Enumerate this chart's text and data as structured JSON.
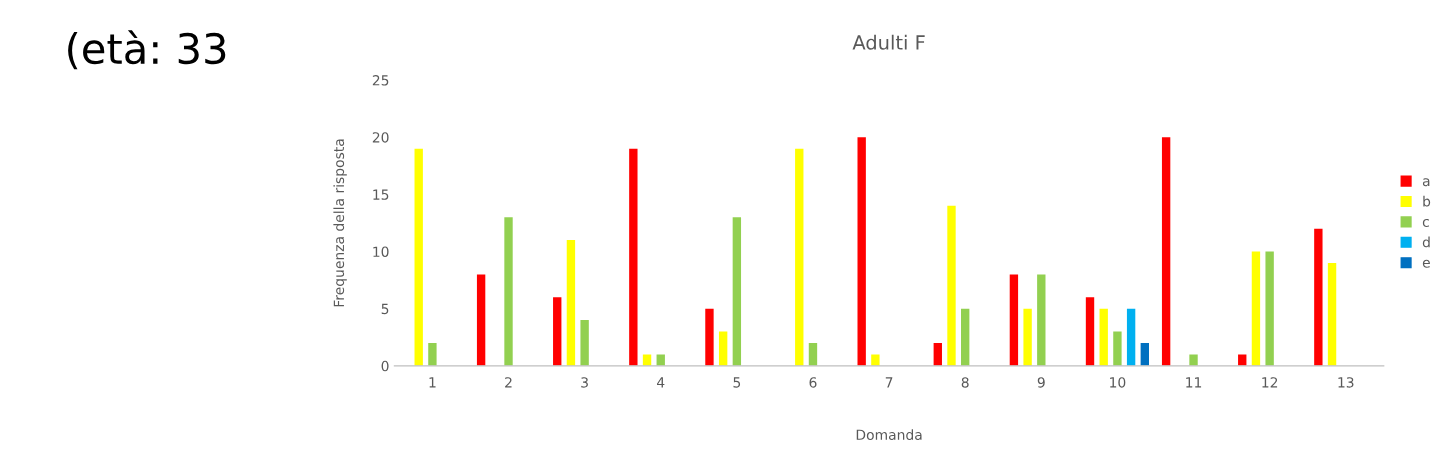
{
  "chart_data": {
    "type": "bar",
    "title": "Adulti F",
    "xlabel": "Domanda",
    "ylabel": "Frequenza della risposta",
    "categories": [
      "1",
      "2",
      "3",
      "4",
      "5",
      "6",
      "7",
      "8",
      "9",
      "10",
      "11",
      "12",
      "13"
    ],
    "series": [
      {
        "name": "a",
        "color": "#ff0000",
        "values": [
          0,
          8,
          6,
          19,
          5,
          0,
          20,
          2,
          8,
          6,
          20,
          1,
          12
        ]
      },
      {
        "name": "b",
        "color": "#ffff00",
        "values": [
          19,
          0,
          11,
          1,
          3,
          19,
          1,
          14,
          5,
          5,
          0,
          10,
          9
        ]
      },
      {
        "name": "c",
        "color": "#92d050",
        "values": [
          2,
          13,
          4,
          1,
          13,
          2,
          0,
          5,
          8,
          3,
          1,
          10,
          0
        ]
      },
      {
        "name": "d",
        "color": "#00b0f0",
        "values": [
          0,
          0,
          0,
          0,
          0,
          0,
          0,
          0,
          0,
          5,
          0,
          0,
          0
        ]
      },
      {
        "name": "e",
        "color": "#0070c0",
        "values": [
          0,
          0,
          0,
          0,
          0,
          0,
          0,
          0,
          0,
          2,
          0,
          0,
          0
        ]
      }
    ],
    "ylim": [
      0,
      25
    ],
    "yticks": [
      0,
      5,
      10,
      15,
      20,
      25
    ],
    "grid": false,
    "legend": "right",
    "annotations": [
      "(età: 33"
    ]
  }
}
